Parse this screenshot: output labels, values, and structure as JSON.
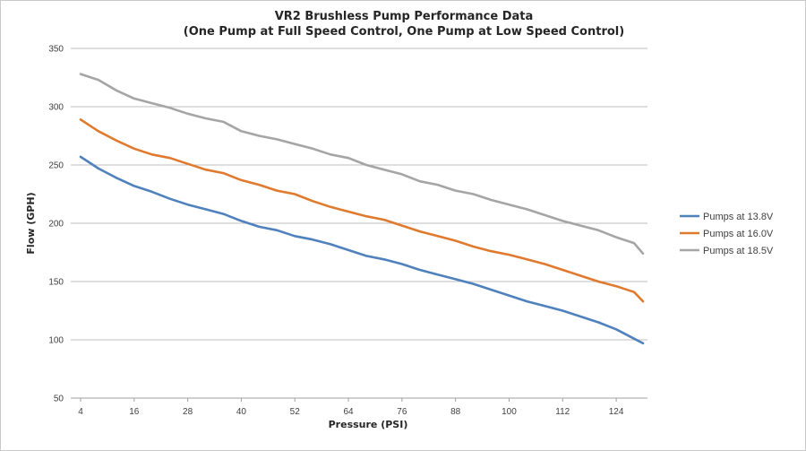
{
  "chart_data": {
    "type": "line",
    "title": "VR2 Brushless Pump Performance Data",
    "subtitle": "(One Pump at Full Speed Control, One Pump at Low Speed Control)",
    "xlabel": "Pressure (PSI)",
    "ylabel": "Flow (GPH)",
    "ylim": [
      50,
      350
    ],
    "yticks": [
      50,
      100,
      150,
      200,
      250,
      300,
      350
    ],
    "xticks": [
      4,
      16,
      28,
      40,
      52,
      64,
      76,
      88,
      100,
      112,
      124
    ],
    "xlim": [
      4,
      130
    ],
    "grid": "horizontal",
    "legend_position": "right",
    "x": [
      4,
      8,
      12,
      16,
      20,
      24,
      28,
      32,
      36,
      40,
      44,
      48,
      52,
      56,
      60,
      64,
      68,
      72,
      76,
      80,
      84,
      88,
      92,
      96,
      100,
      104,
      108,
      112,
      116,
      120,
      124,
      128,
      130
    ],
    "series": [
      {
        "name": "Pumps at 13.8V",
        "color": "#4f81bd",
        "values": [
          257,
          247,
          239,
          232,
          227,
          221,
          216,
          212,
          208,
          202,
          197,
          194,
          189,
          186,
          182,
          177,
          172,
          169,
          165,
          160,
          156,
          152,
          148,
          143,
          138,
          133,
          129,
          125,
          120,
          115,
          109,
          101,
          97
        ]
      },
      {
        "name": "Pumps at 16.0V",
        "color": "#e07a2f",
        "values": [
          289,
          279,
          271,
          264,
          259,
          256,
          251,
          246,
          243,
          237,
          233,
          228,
          225,
          219,
          214,
          210,
          206,
          203,
          198,
          193,
          189,
          185,
          180,
          176,
          173,
          169,
          165,
          160,
          155,
          150,
          146,
          141,
          133
        ]
      },
      {
        "name": "Pumps at 18.5V",
        "color": "#a5a5a5",
        "values": [
          328,
          323,
          314,
          307,
          303,
          299,
          294,
          290,
          287,
          279,
          275,
          272,
          268,
          264,
          259,
          256,
          250,
          246,
          242,
          236,
          233,
          228,
          225,
          220,
          216,
          212,
          207,
          202,
          198,
          194,
          188,
          183,
          174
        ]
      }
    ]
  }
}
